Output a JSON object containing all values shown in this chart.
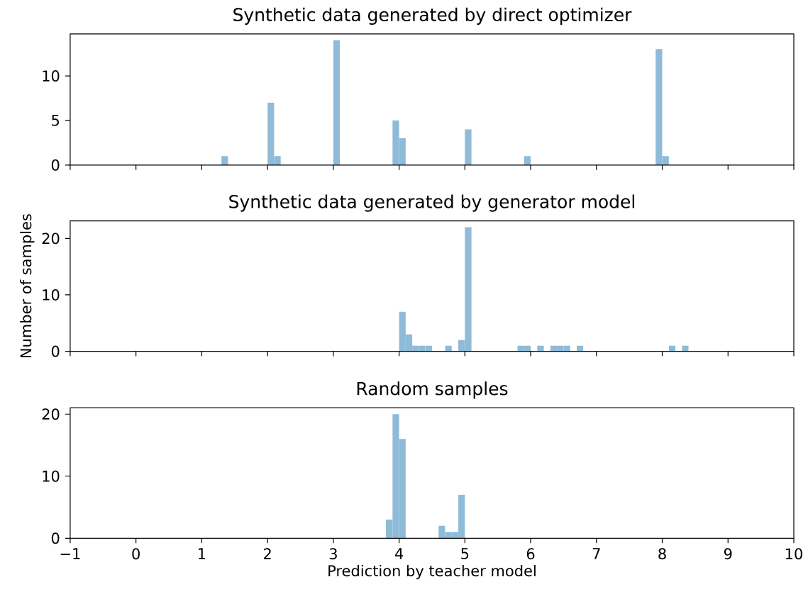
{
  "chart_data": [
    {
      "type": "histogram",
      "title": "Synthetic data generated by direct optimizer",
      "color": "#8fbbd9",
      "bins": [
        1.3,
        1.4,
        1.5,
        1.6,
        1.7,
        1.8,
        1.9,
        2.0,
        2.1,
        2.2,
        2.3,
        2.4,
        2.5,
        2.6,
        2.7,
        2.8,
        2.9,
        3.0,
        3.1,
        3.2,
        3.3,
        3.4,
        3.5,
        3.6,
        3.7,
        3.8,
        3.9,
        4.0,
        4.1,
        4.2,
        4.3,
        4.4,
        4.5,
        4.6,
        4.7,
        4.8,
        4.9,
        5.0,
        5.1,
        5.2,
        5.3,
        5.4,
        5.5,
        5.6,
        5.7,
        5.8,
        5.9,
        6.0,
        6.1,
        6.2,
        6.3,
        6.4,
        6.5,
        6.6,
        6.7,
        6.8,
        6.9,
        7.0,
        7.1,
        7.2,
        7.3,
        7.4,
        7.5,
        7.6,
        7.7,
        7.8,
        7.9,
        8.0,
        8.1
      ],
      "values": [
        1,
        0,
        0,
        0,
        0,
        0,
        0,
        7,
        1,
        0,
        0,
        0,
        0,
        0,
        0,
        0,
        0,
        14,
        0,
        0,
        0,
        0,
        0,
        0,
        0,
        0,
        5,
        3,
        0,
        0,
        0,
        0,
        0,
        0,
        0,
        0,
        0,
        4,
        0,
        0,
        0,
        0,
        0,
        0,
        0,
        0,
        1,
        0,
        0,
        0,
        0,
        0,
        0,
        0,
        0,
        0,
        0,
        0,
        0,
        0,
        0,
        0,
        0,
        0,
        0,
        0,
        13,
        1
      ],
      "xlim": [
        -1,
        10
      ],
      "xticks": [
        -1,
        0,
        1,
        2,
        3,
        4,
        5,
        6,
        7,
        8,
        9,
        10
      ],
      "ylim": [
        0,
        14.7
      ],
      "yticks": [
        0,
        5,
        10
      ],
      "tick_labels": "y"
    },
    {
      "type": "histogram",
      "title": "Synthetic data generated by generator model",
      "ylabel": "Number of samples",
      "color": "#8fbbd9",
      "bins": [
        4.0,
        4.1,
        4.2,
        4.3,
        4.4,
        4.5,
        4.6,
        4.7,
        4.8,
        4.9,
        5.0,
        5.1,
        5.2,
        5.3,
        5.4,
        5.5,
        5.6,
        5.7,
        5.8,
        5.9,
        6.0,
        6.1,
        6.2,
        6.3,
        6.4,
        6.5,
        6.6,
        6.7,
        6.8,
        6.9,
        7.0,
        7.1,
        7.2,
        7.3,
        7.4,
        7.5,
        7.6,
        7.7,
        7.8,
        7.9,
        8.0,
        8.1,
        8.2,
        8.3,
        8.4
      ],
      "values": [
        7,
        3,
        1,
        1,
        1,
        0,
        0,
        1,
        0,
        2,
        22,
        0,
        0,
        0,
        0,
        0,
        0,
        0,
        1,
        1,
        0,
        1,
        0,
        1,
        1,
        1,
        0,
        1,
        0,
        0,
        0,
        0,
        0,
        0,
        0,
        0,
        0,
        0,
        0,
        0,
        0,
        1,
        0,
        1
      ],
      "xlim": [
        -1,
        10
      ],
      "xticks": [
        -1,
        0,
        1,
        2,
        3,
        4,
        5,
        6,
        7,
        8,
        9,
        10
      ],
      "ylim": [
        0,
        23.1
      ],
      "yticks": [
        0,
        10,
        20
      ],
      "tick_labels": "y"
    },
    {
      "type": "histogram",
      "title": "Random samples",
      "xlabel": "Prediction by teacher model",
      "color": "#8fbbd9",
      "bins": [
        3.8,
        3.9,
        4.0,
        4.1,
        4.2,
        4.3,
        4.4,
        4.5,
        4.6,
        4.7,
        4.8,
        4.9,
        5.0
      ],
      "values": [
        3,
        20,
        16,
        0,
        0,
        0,
        0,
        0,
        2,
        1,
        1,
        7
      ],
      "xlim": [
        -1,
        10
      ],
      "xticks": [
        {
          "value": -1,
          "label": "−1"
        },
        0,
        1,
        2,
        3,
        4,
        5,
        6,
        7,
        8,
        9,
        10
      ],
      "ylim": [
        0,
        21
      ],
      "yticks": [
        0,
        10,
        20
      ]
    }
  ]
}
